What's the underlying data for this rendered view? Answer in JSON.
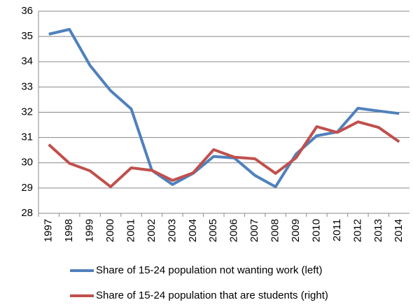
{
  "chart_data": {
    "type": "line",
    "categories": [
      "1997",
      "1998",
      "1999",
      "2000",
      "2001",
      "2002",
      "2003",
      "2004",
      "2005",
      "2006",
      "2007",
      "2008",
      "2009",
      "2010",
      "2011",
      "2012",
      "2013",
      "2014"
    ],
    "series": [
      {
        "name": "Share of 15-24 population not wanting work (left)",
        "color": "#4f81bd",
        "values": [
          35.09,
          35.28,
          33.85,
          32.85,
          32.13,
          29.7,
          29.14,
          29.58,
          30.25,
          30.19,
          29.5,
          29.05,
          30.35,
          31.07,
          31.22,
          32.16,
          32.05,
          31.95
        ]
      },
      {
        "name": "Share of 15-24 population that are students (right)",
        "color": "#c0504d",
        "values": [
          30.72,
          29.98,
          29.68,
          29.05,
          29.8,
          29.7,
          29.3,
          29.6,
          30.52,
          30.22,
          30.16,
          29.58,
          30.2,
          31.43,
          31.2,
          31.62,
          31.4,
          30.83
        ]
      }
    ],
    "ylim": [
      28,
      36
    ],
    "yticks": [
      28,
      29,
      30,
      31,
      32,
      33,
      34,
      35,
      36
    ],
    "grid": true
  }
}
